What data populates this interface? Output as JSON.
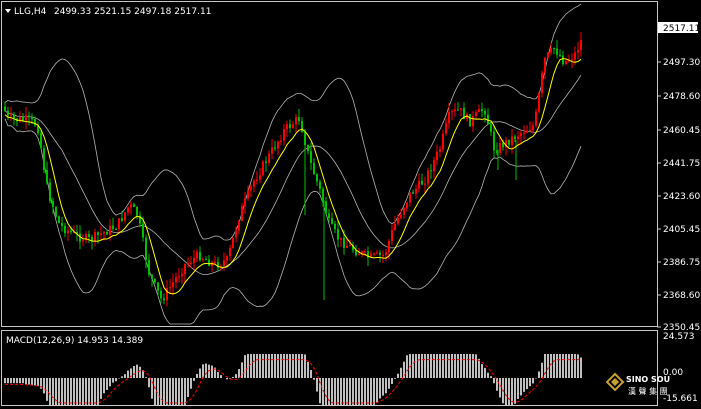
{
  "header": {
    "symbol": "LLG,H4",
    "ohlc": "2499.33 2521.15 2497.18 2517.11"
  },
  "price_axis": {
    "current_price": "2517.11",
    "ticks": [
      "2497.30",
      "2478.60",
      "2460.45",
      "2441.75",
      "2423.60",
      "2405.45",
      "2386.75",
      "2368.60",
      "2350.45"
    ]
  },
  "macd": {
    "label": "MACD(12,26,9) 14.953 14.389",
    "axis_ticks": [
      "24.573",
      "0.00",
      "-15.661"
    ]
  },
  "watermark": {
    "text": "SINO SOUND",
    "subtext": "漢 聲 集 團"
  },
  "colors": {
    "background": "#000000",
    "bull": "#ff0000",
    "bear": "#00c000",
    "ma": "#ffff00",
    "bands": "#b4b4b4",
    "macd_hist": "#ffffff",
    "macd_signal": "#ff0000"
  },
  "chart_data": {
    "type": "candlestick",
    "price_range": [
      2350.45,
      2525.0
    ],
    "indicators": [
      "Bollinger Bands",
      "Moving Average",
      "MACD(12,26,9)"
    ],
    "macd_range": [
      -15.661,
      24.573
    ],
    "last_close": 2517.11
  }
}
